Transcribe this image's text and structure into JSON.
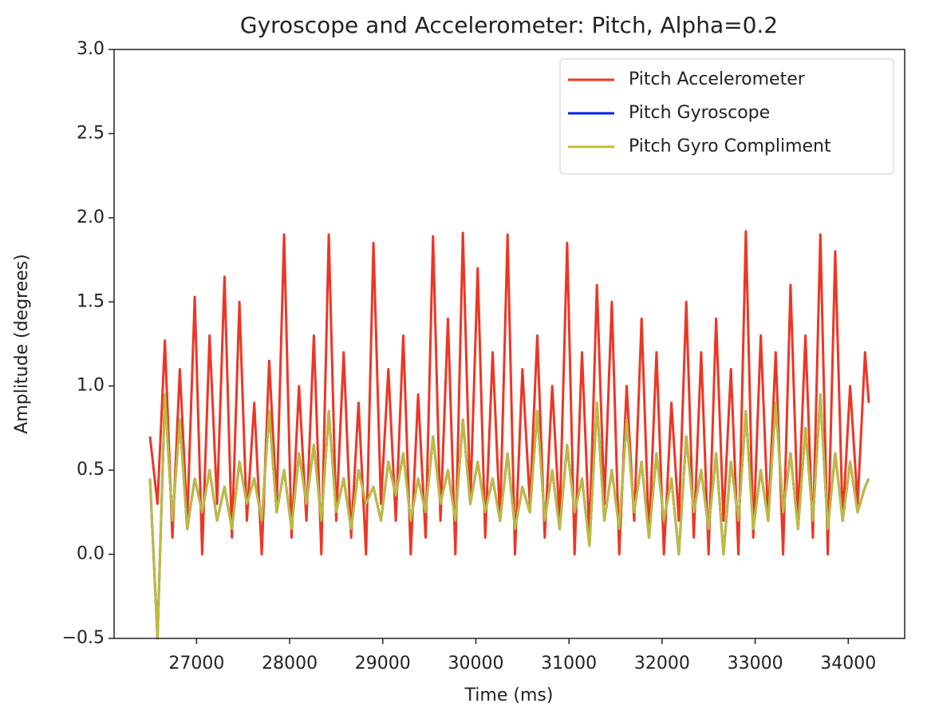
{
  "chart_data": {
    "type": "line",
    "title": "Gyroscope and Accelerometer: Pitch, Alpha=0.2",
    "x_label": "Time (ms)",
    "y_label": "Amplitude (degrees)",
    "x": [
      26500,
      26580,
      26660,
      26740,
      26820,
      26900,
      26980,
      27060,
      27140,
      27220,
      27300,
      27380,
      27460,
      27540,
      27620,
      27700,
      27780,
      27860,
      27940,
      28020,
      28100,
      28180,
      28260,
      28340,
      28420,
      28500,
      28580,
      28660,
      28740,
      28820,
      28900,
      28980,
      29060,
      29140,
      29220,
      29300,
      29380,
      29460,
      29540,
      29620,
      29700,
      29780,
      29860,
      29940,
      30020,
      30100,
      30180,
      30260,
      30340,
      30420,
      30500,
      30580,
      30660,
      30740,
      30820,
      30900,
      30980,
      31060,
      31140,
      31220,
      31300,
      31380,
      31460,
      31540,
      31620,
      31700,
      31780,
      31860,
      31940,
      32020,
      32100,
      32180,
      32260,
      32340,
      32420,
      32500,
      32580,
      32660,
      32740,
      32820,
      32900,
      32980,
      33060,
      33140,
      33220,
      33300,
      33380,
      33460,
      33540,
      33620,
      33700,
      33780,
      33860,
      33940,
      34020,
      34100,
      34180,
      34220
    ],
    "series": [
      {
        "name": "Pitch Accelerometer",
        "color": "#ee3524",
        "values": [
          0.7,
          0.3,
          1.27,
          0.1,
          1.1,
          0.2,
          1.53,
          0.0,
          1.3,
          0.3,
          1.65,
          0.1,
          1.5,
          0.2,
          0.9,
          0.0,
          1.15,
          0.3,
          1.9,
          0.1,
          1.0,
          0.2,
          1.3,
          0.0,
          1.9,
          0.2,
          1.2,
          0.1,
          0.9,
          0.0,
          1.85,
          0.3,
          1.1,
          0.2,
          1.3,
          0.0,
          0.95,
          0.1,
          1.89,
          0.2,
          1.4,
          0.0,
          1.91,
          0.3,
          1.7,
          0.1,
          1.2,
          0.2,
          1.9,
          0.0,
          1.1,
          0.3,
          1.3,
          0.1,
          1.0,
          0.2,
          1.85,
          0.0,
          1.2,
          0.1,
          1.6,
          0.3,
          1.5,
          0.0,
          1.0,
          0.2,
          1.4,
          0.1,
          1.2,
          0.0,
          0.9,
          0.2,
          1.5,
          0.1,
          1.2,
          0.0,
          1.4,
          0.2,
          1.1,
          0.0,
          1.92,
          0.1,
          1.3,
          0.2,
          1.2,
          0.0,
          1.6,
          0.2,
          1.3,
          0.1,
          1.9,
          0.0,
          1.8,
          0.2,
          1.0,
          0.3,
          1.2,
          0.9
        ]
      },
      {
        "name": "Pitch Gyroscope",
        "color": "#0022ee",
        "values": [
          0.45,
          -0.5,
          0.95,
          0.2,
          0.8,
          0.15,
          0.45,
          0.25,
          0.5,
          0.2,
          0.4,
          0.15,
          0.55,
          0.3,
          0.45,
          0.2,
          0.85,
          0.25,
          0.5,
          0.15,
          0.6,
          0.3,
          0.65,
          0.2,
          0.85,
          0.25,
          0.45,
          0.15,
          0.5,
          0.3,
          0.4,
          0.2,
          0.55,
          0.35,
          0.6,
          0.2,
          0.45,
          0.25,
          0.7,
          0.3,
          0.5,
          0.2,
          0.8,
          0.3,
          0.55,
          0.25,
          0.45,
          0.2,
          0.6,
          0.15,
          0.4,
          0.25,
          0.85,
          0.2,
          0.5,
          0.15,
          0.65,
          0.25,
          0.45,
          0.05,
          0.9,
          0.2,
          0.5,
          0.15,
          0.8,
          0.25,
          0.55,
          0.1,
          0.6,
          0.2,
          0.45,
          0.0,
          0.7,
          0.25,
          0.5,
          0.15,
          0.6,
          0.0,
          0.55,
          0.2,
          0.85,
          0.15,
          0.5,
          0.2,
          0.9,
          0.25,
          0.6,
          0.15,
          0.75,
          0.2,
          0.95,
          0.15,
          0.6,
          0.2,
          0.55,
          0.25,
          0.4,
          0.45
        ]
      },
      {
        "name": "Pitch Gyro Compliment",
        "color": "#bfbb3a",
        "values": [
          0.45,
          -0.5,
          0.95,
          0.2,
          0.8,
          0.15,
          0.45,
          0.25,
          0.5,
          0.2,
          0.4,
          0.15,
          0.55,
          0.3,
          0.45,
          0.2,
          0.85,
          0.25,
          0.5,
          0.15,
          0.6,
          0.3,
          0.65,
          0.2,
          0.85,
          0.25,
          0.45,
          0.15,
          0.5,
          0.3,
          0.4,
          0.2,
          0.55,
          0.35,
          0.6,
          0.2,
          0.45,
          0.25,
          0.7,
          0.3,
          0.5,
          0.2,
          0.8,
          0.3,
          0.55,
          0.25,
          0.45,
          0.2,
          0.6,
          0.15,
          0.4,
          0.25,
          0.85,
          0.2,
          0.5,
          0.15,
          0.65,
          0.25,
          0.45,
          0.05,
          0.9,
          0.2,
          0.5,
          0.15,
          0.8,
          0.25,
          0.55,
          0.1,
          0.6,
          0.2,
          0.45,
          0.0,
          0.7,
          0.25,
          0.5,
          0.15,
          0.6,
          0.0,
          0.55,
          0.2,
          0.85,
          0.15,
          0.5,
          0.2,
          0.9,
          0.25,
          0.6,
          0.15,
          0.75,
          0.2,
          0.95,
          0.15,
          0.6,
          0.2,
          0.55,
          0.25,
          0.4,
          0.45
        ]
      }
    ],
    "xlim": [
      26114,
      34606
    ],
    "ylim": [
      -0.5,
      3.0
    ],
    "xticks": [
      27000,
      28000,
      29000,
      30000,
      31000,
      32000,
      33000,
      34000
    ],
    "yticks": [
      {
        "value": -0.5,
        "label": "−0.5"
      },
      {
        "value": 0.0,
        "label": "0.0"
      },
      0.5,
      {
        "value": 1.0,
        "label": "1.0"
      },
      1.5,
      {
        "value": 2.0,
        "label": "2.0"
      },
      2.5,
      {
        "value": 3.0,
        "label": "3.0"
      }
    ],
    "legend": "upper right"
  }
}
